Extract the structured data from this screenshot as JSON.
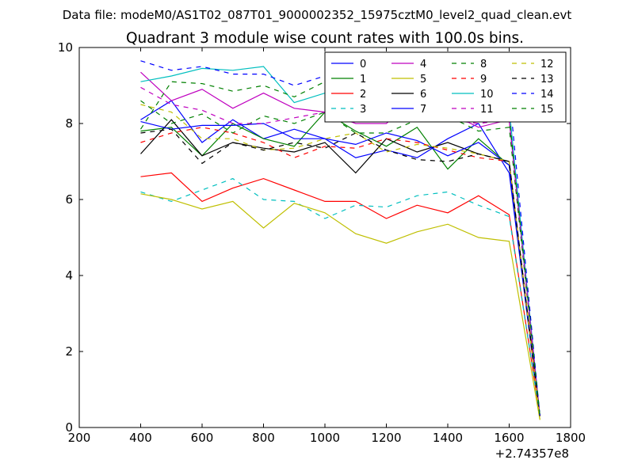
{
  "suptitle": "Data file: modeM0/AS1T02_087T01_9000002352_15975cztM0_level2_quad_clean.evt",
  "chart_data": {
    "type": "line",
    "title": "Quadrant 3 module wise count rates with 100.0s bins.",
    "xlabel": "",
    "ylabel": "",
    "x_offset_label": "+2.74357e8",
    "xlim": [
      200,
      1800
    ],
    "ylim": [
      0,
      10
    ],
    "xticks": [
      200,
      400,
      600,
      800,
      1000,
      1200,
      1400,
      1600,
      1800
    ],
    "yticks": [
      0,
      2,
      4,
      6,
      8,
      10
    ],
    "grid": false,
    "legend_location": "top-right",
    "x": [
      400,
      500,
      600,
      700,
      800,
      900,
      1000,
      1100,
      1200,
      1300,
      1400,
      1500,
      1600,
      1700
    ],
    "series": [
      {
        "name": "0",
        "color": "#0000ff",
        "dash": "solid",
        "values": [
          8.1,
          8.6,
          7.5,
          8.1,
          7.6,
          7.85,
          7.6,
          7.1,
          7.3,
          7.1,
          7.6,
          8.0,
          6.7,
          0.3
        ]
      },
      {
        "name": "1",
        "color": "#008000",
        "dash": "solid",
        "values": [
          7.8,
          7.9,
          7.15,
          8.0,
          7.6,
          7.4,
          8.3,
          7.8,
          7.4,
          7.9,
          6.8,
          7.6,
          6.9,
          0.3
        ]
      },
      {
        "name": "2",
        "color": "#ff0000",
        "dash": "solid",
        "values": [
          6.6,
          6.7,
          5.95,
          6.3,
          6.55,
          6.25,
          5.95,
          5.95,
          5.5,
          5.85,
          5.65,
          6.1,
          5.6,
          0.3
        ]
      },
      {
        "name": "3",
        "color": "#00bfbf",
        "dash": "dashed",
        "values": [
          6.2,
          5.95,
          6.25,
          6.55,
          6.0,
          5.95,
          5.5,
          5.85,
          5.8,
          6.1,
          6.2,
          5.85,
          5.55,
          0.3
        ]
      },
      {
        "name": "4",
        "color": "#bf00bf",
        "dash": "solid",
        "values": [
          9.35,
          8.6,
          8.9,
          8.4,
          8.8,
          8.4,
          8.3,
          8.0,
          8.0,
          8.7,
          8.3,
          7.9,
          8.1,
          0.3
        ]
      },
      {
        "name": "5",
        "color": "#bfbf00",
        "dash": "solid",
        "values": [
          6.15,
          6.0,
          5.75,
          5.95,
          5.25,
          5.9,
          5.65,
          5.1,
          4.85,
          5.15,
          5.35,
          5.0,
          4.9,
          0.2
        ]
      },
      {
        "name": "6",
        "color": "#000000",
        "dash": "solid",
        "values": [
          7.2,
          8.1,
          7.15,
          7.5,
          7.35,
          7.25,
          7.5,
          6.7,
          7.6,
          7.25,
          7.5,
          7.2,
          7.0,
          0.3
        ]
      },
      {
        "name": "7",
        "color": "#0000ff",
        "dash": "solid",
        "values": [
          8.05,
          7.85,
          7.95,
          7.95,
          8.0,
          7.6,
          7.6,
          7.45,
          7.75,
          7.55,
          7.15,
          7.5,
          6.9,
          0.3
        ]
      },
      {
        "name": "8",
        "color": "#008000",
        "dash": "dashed",
        "values": [
          8.6,
          8.0,
          8.25,
          7.75,
          8.2,
          8.0,
          8.3,
          7.75,
          7.75,
          8.1,
          8.2,
          7.8,
          7.9,
          0.3
        ]
      },
      {
        "name": "9",
        "color": "#ff0000",
        "dash": "dashed",
        "values": [
          7.5,
          7.75,
          7.9,
          7.75,
          7.5,
          7.1,
          7.4,
          7.35,
          7.6,
          7.5,
          7.3,
          7.1,
          7.0,
          0.3
        ]
      },
      {
        "name": "10",
        "color": "#00bfbf",
        "dash": "solid",
        "values": [
          9.1,
          9.25,
          9.45,
          9.4,
          9.5,
          8.55,
          8.8,
          8.6,
          8.2,
          8.4,
          8.5,
          8.9,
          8.4,
          0.3
        ]
      },
      {
        "name": "11",
        "color": "#bf00bf",
        "dash": "dashed",
        "values": [
          8.95,
          8.5,
          8.35,
          8.0,
          8.0,
          8.15,
          8.3,
          8.2,
          8.1,
          8.2,
          8.1,
          8.0,
          8.1,
          0.3
        ]
      },
      {
        "name": "12",
        "color": "#bfbf00",
        "dash": "dashed",
        "values": [
          8.5,
          8.3,
          7.6,
          7.6,
          7.3,
          7.35,
          7.6,
          7.75,
          7.25,
          7.45,
          7.35,
          7.2,
          7.0,
          0.2
        ]
      },
      {
        "name": "13",
        "color": "#000000",
        "dash": "dashed",
        "values": [
          7.75,
          7.85,
          6.95,
          7.5,
          7.3,
          7.5,
          7.35,
          7.75,
          7.3,
          7.05,
          7.0,
          7.2,
          7.0,
          0.3
        ]
      },
      {
        "name": "14",
        "color": "#0000ff",
        "dash": "dashed",
        "values": [
          9.65,
          9.4,
          9.5,
          9.3,
          9.3,
          9.0,
          9.25,
          9.1,
          9.55,
          9.2,
          9.6,
          9.2,
          8.85,
          0.3
        ]
      },
      {
        "name": "15",
        "color": "#008000",
        "dash": "dashed",
        "values": [
          7.85,
          9.1,
          9.05,
          8.85,
          9.0,
          8.7,
          9.1,
          8.7,
          8.55,
          8.95,
          8.9,
          8.85,
          8.2,
          0.3
        ]
      }
    ]
  }
}
